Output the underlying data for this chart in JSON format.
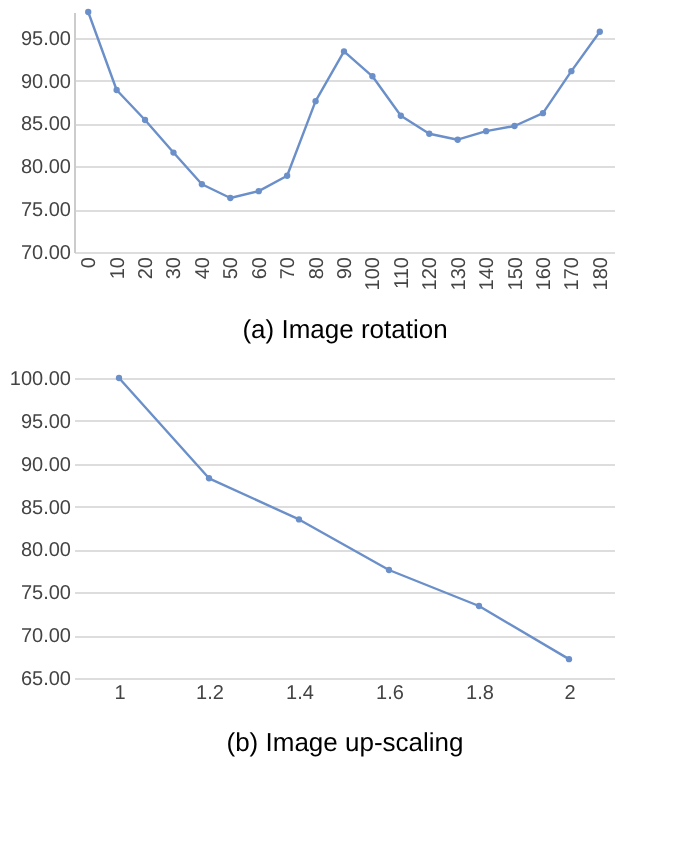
{
  "chart_data": [
    {
      "type": "line",
      "xlabel": "(a) Image rotation",
      "categories": [
        "0",
        "10",
        "20",
        "30",
        "40",
        "50",
        "60",
        "70",
        "80",
        "90",
        "100",
        "110",
        "120",
        "130",
        "140",
        "150",
        "160",
        "170",
        "180"
      ],
      "series": [
        {
          "color": "#6a8fc9",
          "values": [
            98,
            88.9,
            85.4,
            81.6,
            77.9,
            76.3,
            77.1,
            78.9,
            87.6,
            93.4,
            90.5,
            85.9,
            83.8,
            83.1,
            84.1,
            84.7,
            86.2,
            91.1,
            95.7
          ]
        }
      ],
      "ylim": [
        70,
        98
      ],
      "yticks": [
        {
          "value": 70,
          "label": "70.00"
        },
        {
          "value": 75,
          "label": "75.00"
        },
        {
          "value": 80,
          "label": "80.00"
        },
        {
          "value": 85,
          "label": "85.00"
        },
        {
          "value": 90,
          "label": "90.00"
        },
        {
          "value": 95,
          "label": "95.00"
        }
      ],
      "grid": "y",
      "marker": "circle",
      "line_style": "solid",
      "legend": false
    },
    {
      "type": "line",
      "xlabel": "(b) Image up-scaling",
      "categories": [
        "1",
        "1.2",
        "1.4",
        "1.6",
        "1.8",
        "2"
      ],
      "series": [
        {
          "color": "#6a8fc9",
          "values": [
            100,
            88.3,
            83.5,
            77.6,
            73.4,
            67.2
          ]
        }
      ],
      "ylim": [
        65,
        100
      ],
      "yticks": [
        {
          "value": 65,
          "label": "65.00"
        },
        {
          "value": 70,
          "label": "70.00"
        },
        {
          "value": 75,
          "label": "75.00"
        },
        {
          "value": 80,
          "label": "80.00"
        },
        {
          "value": 85,
          "label": "85.00"
        },
        {
          "value": 90,
          "label": "90.00"
        },
        {
          "value": 95,
          "label": "95.00"
        },
        {
          "value": 100,
          "label": "100.00"
        }
      ],
      "grid": "y",
      "marker": "circle",
      "line_style": "solid",
      "legend": false
    }
  ]
}
